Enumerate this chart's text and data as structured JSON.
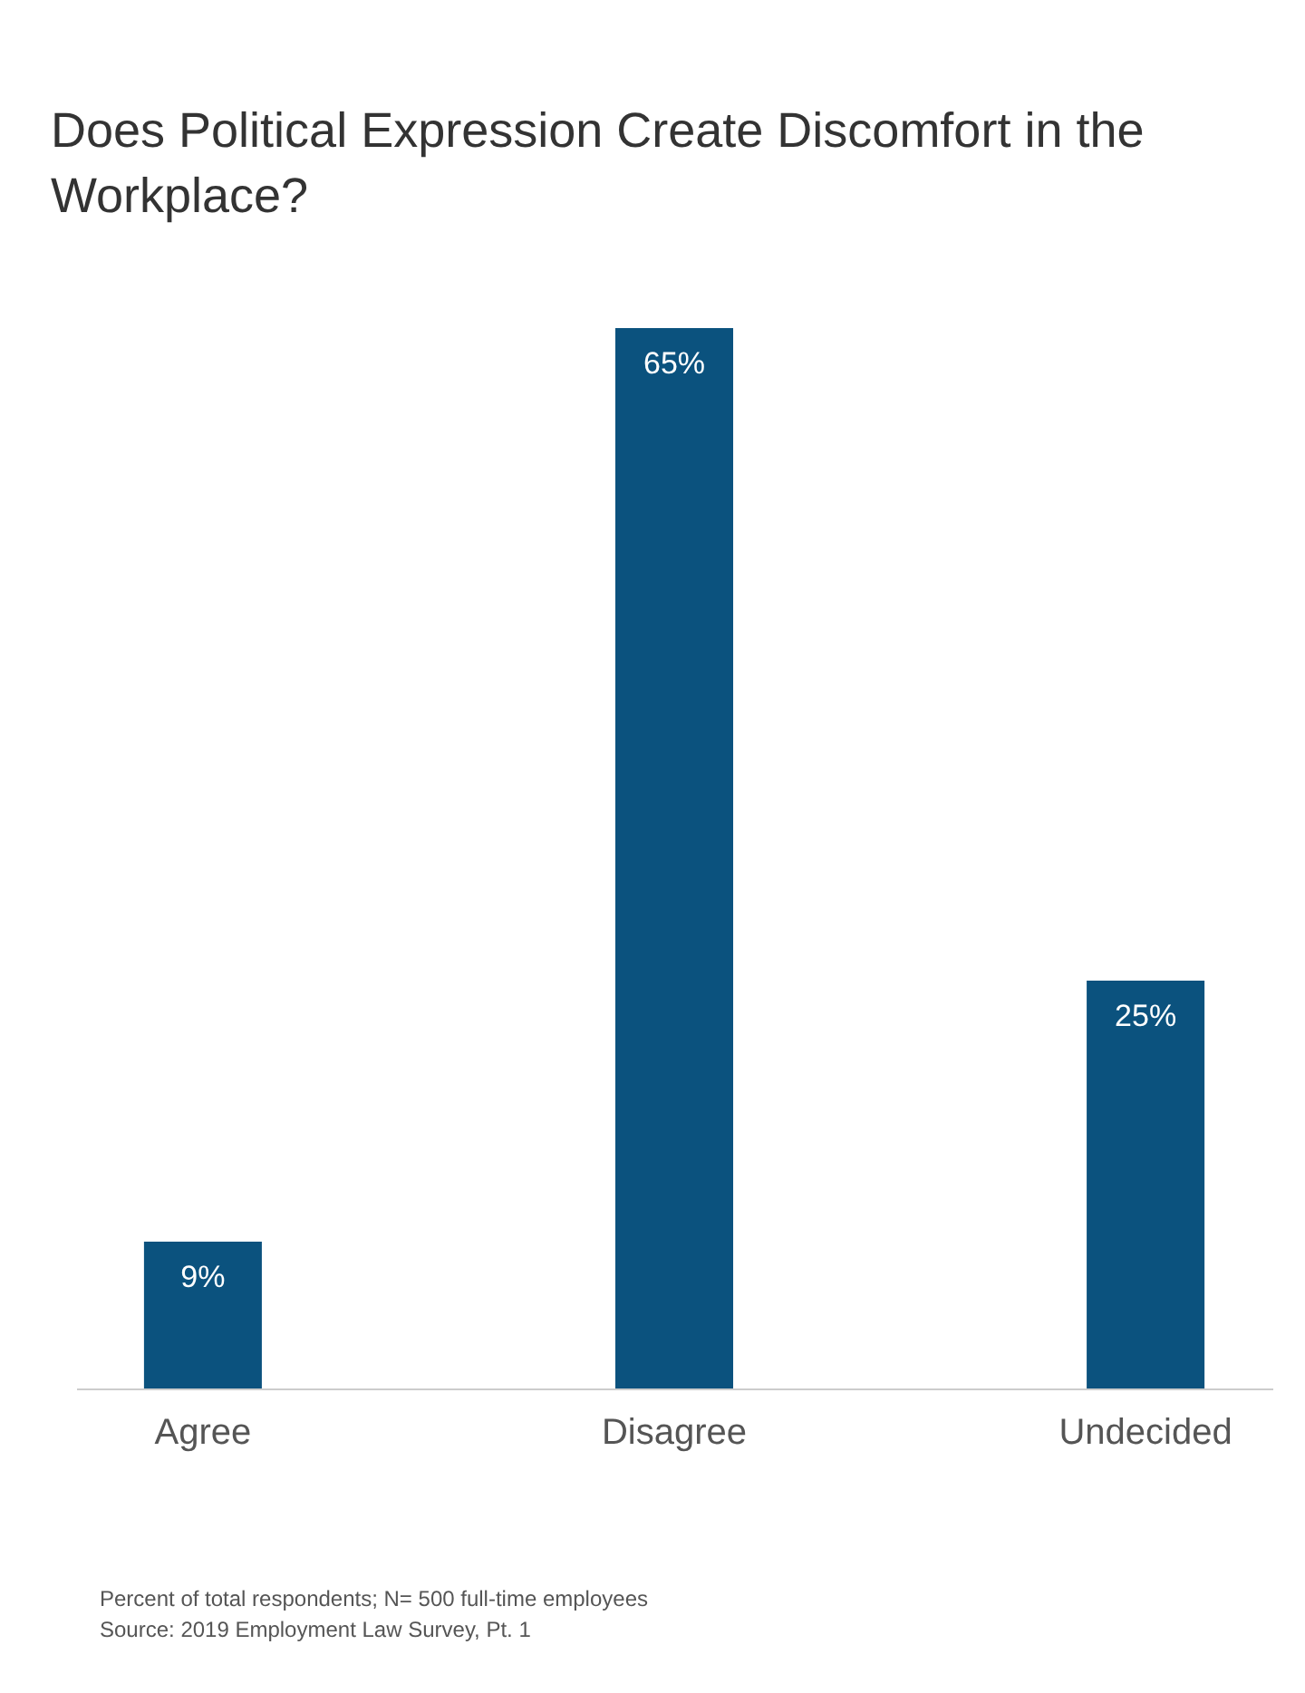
{
  "chart_data": {
    "type": "bar",
    "title": "Does Political Expression Create Discomfort in the Workplace?",
    "categories": [
      "Agree",
      "Disagree",
      "Undecided"
    ],
    "values": [
      9,
      65,
      25
    ],
    "color": "#0b527e",
    "value_labels": [
      "9%",
      "65%",
      "25%"
    ],
    "annotations": [
      "Percent of total respondents; N= 500 full-time employees",
      "Source: 2019 Employment Law Survey, Pt. 1"
    ]
  }
}
